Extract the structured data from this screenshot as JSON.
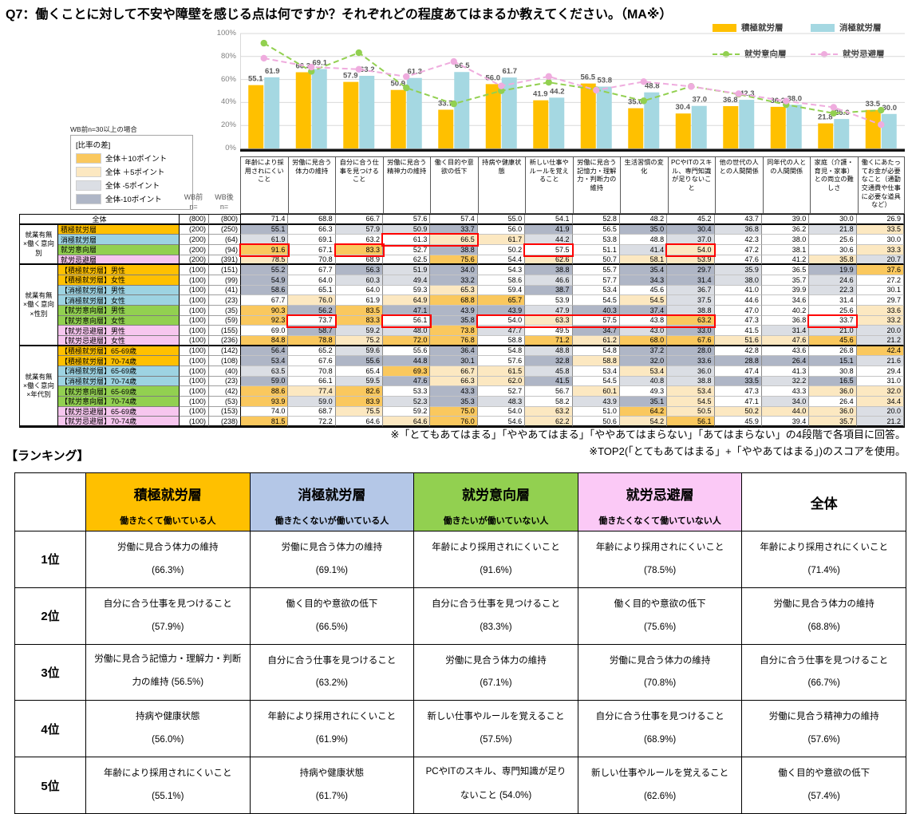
{
  "title": "Q7：働くことに対して不安や障壁を感じる点は何ですか？それぞれどの程度あてはまるか教えてください。（MA※）",
  "chart_data": {
    "type": "bar",
    "ylim": [
      0,
      100
    ],
    "y_ticks": [
      "0%",
      "20%",
      "40%",
      "60%",
      "80%",
      "100%"
    ],
    "grid": true,
    "legend_position": "top-right",
    "categories": [
      "年齢により採用されにくいこと",
      "労働に見合う体力の維持",
      "自分に合う仕事を見つけること",
      "労働に見合う精神力の維持",
      "働く目的や意欲の低下",
      "持病や健康状態",
      "新しい仕事やルールを覚えること",
      "労働に見合う記憶力・理解力・判断力の維持",
      "生活習慣の変化",
      "PCやITのスキル、専門知識が足りないこと",
      "他の世代の人との人間関係",
      "同年代の人との人間関係",
      "家庭（介護・育児・家事）との両立の難しさ",
      "働くにあたってお金が必要なこと（通勤交通費や仕事に必要な道具など）"
    ],
    "series": [
      {
        "name": "積極就労層",
        "render": "bar",
        "color": "#FFC000",
        "values": [
          55.1,
          66.3,
          57.9,
          50.9,
          33.7,
          56.0,
          41.9,
          56.5,
          35.0,
          30.4,
          36.8,
          36.2,
          21.8,
          33.5
        ]
      },
      {
        "name": "消極就労層",
        "render": "bar",
        "color": "#A5D8E2",
        "values": [
          61.9,
          69.1,
          63.2,
          61.3,
          66.5,
          61.7,
          44.2,
          53.8,
          48.8,
          37.0,
          42.3,
          38.0,
          25.6,
          30.0
        ]
      },
      {
        "name": "就労意向層",
        "render": "line",
        "color": "#92D050",
        "values": [
          91.6,
          67.1,
          83.3,
          52.7,
          38.8,
          50.2,
          57.5,
          51.1,
          41.4,
          54.0,
          47.2,
          38.1,
          30.6,
          33.3
        ]
      },
      {
        "name": "就労忌避層",
        "render": "line",
        "color": "#EFACDE",
        "values": [
          78.5,
          70.8,
          68.9,
          62.5,
          75.6,
          54.4,
          62.6,
          50.7,
          58.1,
          53.9,
          47.6,
          41.2,
          35.8,
          20.7
        ]
      }
    ]
  },
  "diff_legend": {
    "note": "WB前n=30以上の場合",
    "title": "[比率の差]",
    "items": [
      {
        "label": "全体＋10ポイント",
        "key": "p10"
      },
      {
        "label": "全体 ＋5ポイント",
        "key": "p5"
      },
      {
        "label": "全体 -5ポイント",
        "key": "m5"
      },
      {
        "label": "全体-10ポイント",
        "key": "m10"
      }
    ]
  },
  "diff_colors": {
    "p10": "#FAC85E",
    "p5": "#FCE8C1",
    "m5": "#DBDEE4",
    "m10": "#AFB6C6"
  },
  "seg_colors": {
    "all": "#FFFFFF",
    "sek": "#FFC000",
    "sho": "#9DD3E2",
    "iko": "#92D050",
    "kih": "#F7C6EF"
  },
  "wb_headers": [
    "WB前\nn=",
    "WB後\nn="
  ],
  "table": {
    "groups": [
      {
        "name": "",
        "rows": [
          {
            "label": "全体",
            "seg": "all",
            "n1": "(800)",
            "n2": "(800)",
            "values": [
              71.4,
              68.8,
              66.7,
              57.6,
              57.4,
              55.0,
              54.1,
              52.8,
              48.2,
              45.2,
              43.7,
              39.0,
              30.0,
              26.9
            ]
          }
        ]
      },
      {
        "name": "就業有無\n×働く意向\n別",
        "rows": [
          {
            "label": "積極就労層",
            "seg": "sek",
            "n1": "(200)",
            "n2": "(250)",
            "values": [
              55.1,
              66.3,
              57.9,
              50.9,
              33.7,
              56.0,
              41.9,
              56.5,
              35.0,
              30.4,
              36.8,
              36.2,
              21.8,
              33.5
            ]
          },
          {
            "label": "消極就労層",
            "seg": "sho",
            "n1": "(200)",
            "n2": "(64)",
            "values": [
              61.9,
              69.1,
              63.2,
              61.3,
              66.5,
              61.7,
              44.2,
              53.8,
              48.8,
              37.0,
              42.3,
              38.0,
              25.6,
              30.0
            ]
          },
          {
            "label": "就労意向層",
            "seg": "iko",
            "n1": "(200)",
            "n2": "(94)",
            "values": [
              91.6,
              67.1,
              83.3,
              52.7,
              38.8,
              50.2,
              57.5,
              51.1,
              41.4,
              54.0,
              47.2,
              38.1,
              30.6,
              33.3
            ]
          },
          {
            "label": "就労忌避層",
            "seg": "kih",
            "n1": "(200)",
            "n2": "(391)",
            "values": [
              78.5,
              70.8,
              68.9,
              62.5,
              75.6,
              54.4,
              62.6,
              50.7,
              58.1,
              53.9,
              47.6,
              41.2,
              35.8,
              20.7
            ]
          }
        ]
      },
      {
        "name": "就業有無\n×働く意向\n×性別",
        "rows": [
          {
            "label": "【積極就労層】男性",
            "seg": "sek",
            "n1": "(100)",
            "n2": "(151)",
            "values": [
              55.2,
              67.7,
              56.3,
              51.9,
              34.0,
              54.3,
              38.8,
              55.7,
              35.4,
              29.7,
              35.9,
              36.5,
              19.9,
              37.6
            ]
          },
          {
            "label": "【積極就労層】女性",
            "seg": "sek",
            "n1": "(100)",
            "n2": "(99)",
            "values": [
              54.9,
              64.0,
              60.3,
              49.4,
              33.2,
              58.6,
              46.6,
              57.7,
              34.3,
              31.4,
              38.0,
              35.7,
              24.6,
              27.2
            ]
          },
          {
            "label": "【消極就労層】男性",
            "seg": "sho",
            "n1": "(100)",
            "n2": "(41)",
            "values": [
              58.6,
              65.1,
              64.0,
              59.3,
              65.3,
              59.4,
              38.7,
              53.4,
              45.6,
              36.7,
              41.0,
              39.9,
              22.3,
              30.1
            ]
          },
          {
            "label": "【消極就労層】女性",
            "seg": "sho",
            "n1": "(100)",
            "n2": "(23)",
            "values": [
              67.7,
              76.0,
              61.9,
              64.9,
              68.8,
              65.7,
              53.9,
              54.5,
              54.5,
              37.5,
              44.6,
              34.6,
              31.4,
              29.7
            ]
          },
          {
            "label": "【就労意向層】男性",
            "seg": "iko",
            "n1": "(100)",
            "n2": "(35)",
            "values": [
              90.3,
              56.2,
              83.5,
              47.1,
              43.9,
              43.9,
              47.9,
              40.3,
              37.4,
              38.8,
              47.0,
              40.2,
              25.6,
              33.6
            ]
          },
          {
            "label": "【就労意向層】女性",
            "seg": "iko",
            "n1": "(100)",
            "n2": "(59)",
            "values": [
              92.3,
              73.7,
              83.3,
              56.1,
              35.8,
              54.0,
              63.3,
              57.5,
              43.8,
              63.2,
              47.3,
              36.8,
              33.7,
              33.2
            ]
          },
          {
            "label": "【就労忌避層】男性",
            "seg": "kih",
            "n1": "(100)",
            "n2": "(155)",
            "values": [
              69.0,
              58.7,
              59.2,
              48.0,
              73.8,
              47.7,
              49.5,
              34.7,
              43.0,
              33.0,
              41.5,
              31.4,
              21.0,
              20.0
            ]
          },
          {
            "label": "【就労忌避層】女性",
            "seg": "kih",
            "n1": "(100)",
            "n2": "(236)",
            "values": [
              84.8,
              78.8,
              75.2,
              72.0,
              76.8,
              58.8,
              71.2,
              61.2,
              68.0,
              67.6,
              51.6,
              47.6,
              45.6,
              21.2
            ]
          }
        ]
      },
      {
        "name": "就業有無\n×働く意向\n×年代別",
        "rows": [
          {
            "label": "【積極就労層】65-69歳",
            "seg": "sek",
            "n1": "(100)",
            "n2": "(142)",
            "values": [
              56.4,
              65.2,
              59.6,
              55.6,
              36.4,
              54.8,
              48.8,
              54.8,
              37.2,
              28.0,
              42.8,
              43.6,
              26.8,
              42.4
            ]
          },
          {
            "label": "【積極就労層】70-74歳",
            "seg": "sek",
            "n1": "(100)",
            "n2": "(108)",
            "values": [
              53.4,
              67.6,
              55.6,
              44.8,
              30.1,
              57.6,
              32.8,
              58.8,
              32.0,
              33.6,
              28.8,
              26.4,
              15.1,
              21.6
            ]
          },
          {
            "label": "【消極就労層】65-69歳",
            "seg": "sho",
            "n1": "(100)",
            "n2": "(40)",
            "values": [
              63.5,
              70.8,
              65.4,
              69.3,
              66.7,
              61.5,
              45.8,
              53.4,
              53.4,
              36.0,
              47.4,
              41.3,
              30.8,
              29.4
            ]
          },
          {
            "label": "【消極就労層】70-74歳",
            "seg": "sho",
            "n1": "(100)",
            "n2": "(23)",
            "values": [
              59.0,
              66.1,
              59.5,
              47.6,
              66.3,
              62.0,
              41.5,
              54.5,
              40.8,
              38.8,
              33.5,
              32.2,
              16.5,
              31.0
            ]
          },
          {
            "label": "【就労意向層】65-69歳",
            "seg": "iko",
            "n1": "(100)",
            "n2": "(42)",
            "values": [
              88.6,
              77.4,
              82.6,
              53.3,
              43.3,
              52.7,
              56.7,
              60.1,
              49.3,
              53.4,
              47.3,
              43.3,
              36.0,
              32.0
            ]
          },
          {
            "label": "【就労意向層】70-74歳",
            "seg": "iko",
            "n1": "(100)",
            "n2": "(53)",
            "values": [
              93.9,
              59.0,
              83.9,
              52.3,
              35.3,
              48.3,
              58.2,
              43.9,
              35.1,
              54.5,
              47.1,
              34.0,
              26.4,
              34.4
            ]
          },
          {
            "label": "【就労忌避層】65-69歳",
            "seg": "kih",
            "n1": "(100)",
            "n2": "(153)",
            "values": [
              74.0,
              68.7,
              75.5,
              59.2,
              75.0,
              54.0,
              63.2,
              51.0,
              64.2,
              50.5,
              50.2,
              44.0,
              36.0,
              20.0
            ]
          },
          {
            "label": "【就労忌避層】70-74歳",
            "seg": "kih",
            "n1": "(100)",
            "n2": "(238)",
            "values": [
              81.5,
              72.2,
              64.6,
              64.6,
              76.0,
              54.6,
              62.2,
              50.6,
              54.2,
              56.1,
              45.9,
              39.4,
              35.7,
              21.2
            ]
          }
        ]
      }
    ],
    "red_boxes": [
      {
        "row": 2,
        "c1": 4,
        "c2": 5
      },
      {
        "row": 3,
        "c1": 1,
        "c2": 1
      },
      {
        "row": 3,
        "c1": 3,
        "c2": 3
      },
      {
        "row": 3,
        "c1": 7,
        "c2": 7
      },
      {
        "row": 3,
        "c1": 10,
        "c2": 10
      },
      {
        "row": 10,
        "c1": 2,
        "c2": 2
      },
      {
        "row": 10,
        "c1": 4,
        "c2": 4
      },
      {
        "row": 10,
        "c1": 6,
        "c2": 10
      },
      {
        "row": 10,
        "c1": 13,
        "c2": 13
      }
    ]
  },
  "notes": [
    "※「とてもあてはまる」「ややあてはまる」「ややあてはまらない」「あてはまらない」の4段階で各項目に回答。",
    "※TOP2(「とてもあてはまる」+「ややあてはまる」)のスコアを使用。"
  ],
  "ranking": {
    "heading": "【ランキング】",
    "columns": [
      {
        "name": "積極就労層",
        "subtitle": "働きたくて働いている人",
        "color": "#FFC000"
      },
      {
        "name": "消極就労層",
        "subtitle": "働きたくないが働いている人",
        "color": "#B4C7E7"
      },
      {
        "name": "就労意向層",
        "subtitle": "働きたいが働いていない人",
        "color": "#92D050"
      },
      {
        "name": "就労忌避層",
        "subtitle": "働きたくなくて働いていない人",
        "color": "#FBC9F6"
      },
      {
        "name": "全体",
        "subtitle": "",
        "color": "#FFFFFF"
      }
    ],
    "rows": [
      {
        "rank": "1位",
        "cells": [
          {
            "label": "労働に見合う体力の維持",
            "pct": "66.3%"
          },
          {
            "label": "労働に見合う体力の維持",
            "pct": "69.1%"
          },
          {
            "label": "年齢により採用されにくいこと",
            "pct": "91.6%"
          },
          {
            "label": "年齢により採用されにくいこと",
            "pct": "78.5%"
          },
          {
            "label": "年齢により採用されにくいこと",
            "pct": "71.4%"
          }
        ]
      },
      {
        "rank": "2位",
        "cells": [
          {
            "label": "自分に合う仕事を見つけること",
            "pct": "57.9%"
          },
          {
            "label": "働く目的や意欲の低下",
            "pct": "66.5%"
          },
          {
            "label": "自分に合う仕事を見つけること",
            "pct": "83.3%"
          },
          {
            "label": "働く目的や意欲の低下",
            "pct": "75.6%"
          },
          {
            "label": "労働に見合う体力の維持",
            "pct": "68.8%"
          }
        ]
      },
      {
        "rank": "3位",
        "cells": [
          {
            "label": "労働に見合う記憶力・理解力・判断力の維持",
            "pct": "56.5%",
            "inline": true
          },
          {
            "label": "自分に合う仕事を見つけること",
            "pct": "63.2%"
          },
          {
            "label": "労働に見合う体力の維持",
            "pct": "67.1%"
          },
          {
            "label": "労働に見合う体力の維持",
            "pct": "70.8%"
          },
          {
            "label": "自分に合う仕事を見つけること",
            "pct": "66.7%"
          }
        ]
      },
      {
        "rank": "4位",
        "cells": [
          {
            "label": "持病や健康状態",
            "pct": "56.0%"
          },
          {
            "label": "年齢により採用されにくいこと",
            "pct": "61.9%"
          },
          {
            "label": "新しい仕事やルールを覚えること",
            "pct": "57.5%"
          },
          {
            "label": "自分に合う仕事を見つけること",
            "pct": "68.9%"
          },
          {
            "label": "労働に見合う精神力の維持",
            "pct": "57.6%"
          }
        ]
      },
      {
        "rank": "5位",
        "cells": [
          {
            "label": "年齢により採用されにくいこと",
            "pct": "55.1%"
          },
          {
            "label": "持病や健康状態",
            "pct": "61.7%"
          },
          {
            "label": "PCやITのスキル、専門知識が足りないこと",
            "pct": "54.0%",
            "inline": true
          },
          {
            "label": "新しい仕事やルールを覚えること",
            "pct": "62.6%"
          },
          {
            "label": "働く目的や意欲の低下",
            "pct": "57.4%"
          }
        ]
      }
    ]
  }
}
